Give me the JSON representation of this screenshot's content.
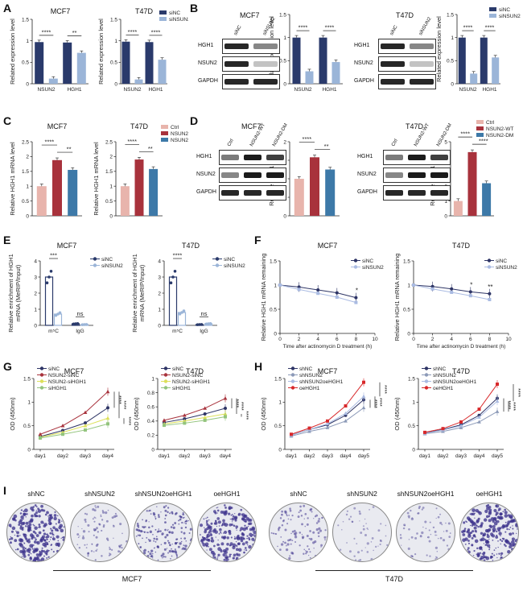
{
  "panel_letters": {
    "A": "A",
    "B": "B",
    "C": "C",
    "D": "D",
    "E": "E",
    "F": "F",
    "G": "G",
    "H": "H",
    "I": "I"
  },
  "colors": {
    "navy": "#2a3a6b",
    "lightblue": "#9bb5d8",
    "pink": "#e8b4ac",
    "crimson": "#a8323c",
    "steel": "#3d79a8",
    "darkblue": "#2e3566",
    "gray": "#8c9ab8",
    "yellow": "#dde05a",
    "green": "#93c47d",
    "red": "#d8282a",
    "lavender": "#aabbe2"
  },
  "blots": {
    "B_MCF7": {
      "title": "MCF7",
      "lanes": [
        "siNC",
        "siNSUN2"
      ],
      "rows": [
        "HGH1",
        "NSUN2",
        "GAPDH"
      ]
    },
    "B_T47D": {
      "title": "T47D",
      "lanes": [
        "siNC",
        "siNSUN2"
      ],
      "rows": [
        "HGH1",
        "NSUN2",
        "GAPDH"
      ]
    },
    "D_MCF7": {
      "title": "MCF7",
      "lanes": [
        "Ctrl",
        "NSUN2-WT",
        "NSUN2-DM"
      ],
      "rows": [
        "HGH1",
        "NSUN2",
        "GAPDH"
      ]
    },
    "D_T47D": {
      "title": "T47D",
      "lanes": [
        "Ctrl",
        "NSUN2-WT",
        "NSUN2-DM"
      ],
      "rows": [
        "HGH1",
        "NSUN2",
        "GAPDH"
      ]
    }
  },
  "colony": {
    "MCF7": {
      "labels": [
        "shNC",
        "shNSUN2",
        "shNSUN2oeHGH1",
        "oeHGH1"
      ],
      "group": "MCF7",
      "density": [
        0.85,
        0.25,
        0.6,
        0.8
      ]
    },
    "T47D": {
      "labels": [
        "shNC",
        "shNSUN2",
        "shNSUN2oeHGH1",
        "oeHGH1"
      ],
      "group": "T47D",
      "density": [
        0.35,
        0.12,
        0.18,
        0.85
      ]
    }
  },
  "chart_data": [
    {
      "id": "A1",
      "type": "bar",
      "title": "MCF7",
      "ylabel": "Related expression level",
      "categories": [
        "NSUN2",
        "HGH1"
      ],
      "ylim": [
        0,
        1.5
      ],
      "yticks": [
        0,
        0.5,
        1.0,
        1.5
      ],
      "legend": [],
      "series": [
        {
          "name": "siNC",
          "values": [
            0.97,
            0.96
          ]
        },
        {
          "name": "siNSUN2",
          "values": [
            0.12,
            0.72
          ]
        }
      ],
      "sig": [
        "****",
        "**"
      ]
    },
    {
      "id": "A2",
      "type": "bar",
      "title": "T47D",
      "ylabel": "Related expression level",
      "categories": [
        "NSUN2",
        "HGH1"
      ],
      "ylim": [
        0,
        1.5
      ],
      "yticks": [
        0,
        0.5,
        1.0,
        1.5
      ],
      "legend": [
        "siNC",
        "siNSUN2"
      ],
      "series": [
        {
          "name": "siNC",
          "values": [
            0.98,
            0.97
          ]
        },
        {
          "name": "siNSUN2",
          "values": [
            0.1,
            0.56
          ]
        }
      ],
      "sig": [
        "****",
        "****"
      ]
    },
    {
      "id": "B1",
      "type": "bar",
      "title": "",
      "ylabel": "Related expression level",
      "categories": [
        "NSUN2",
        "HGH1"
      ],
      "ylim": [
        0,
        1.5
      ],
      "yticks": [
        0,
        0.5,
        1.0,
        1.5
      ],
      "legend": [],
      "series": [
        {
          "name": "siNC",
          "values": [
            1.0,
            1.0
          ]
        },
        {
          "name": "siNSUN2",
          "values": [
            0.27,
            0.47
          ]
        }
      ],
      "sig": [
        "****",
        "****"
      ]
    },
    {
      "id": "B2",
      "type": "bar",
      "title": "",
      "ylabel": "Related expression level",
      "categories": [
        "NSUN2",
        "HGH1"
      ],
      "ylim": [
        0,
        1.5
      ],
      "yticks": [
        0,
        0.5,
        1.0,
        1.5
      ],
      "legend": [
        "siNC",
        "siNSUN2"
      ],
      "series": [
        {
          "name": "siNC",
          "values": [
            1.0,
            1.0
          ]
        },
        {
          "name": "siNSUN2",
          "values": [
            0.22,
            0.57
          ]
        }
      ],
      "sig": [
        "****",
        "****"
      ]
    },
    {
      "id": "C1",
      "type": "bar",
      "title": "MCF7",
      "ylabel": "Relative HGH1 mRNA level",
      "categories": [
        ""
      ],
      "ylim": [
        0,
        2.5
      ],
      "yticks": [
        0,
        0.5,
        1.0,
        1.5,
        2.0,
        2.5
      ],
      "legend": [],
      "series": [
        {
          "name": "Ctrl",
          "values": [
            1.0
          ]
        },
        {
          "name": "NSUN2-WT",
          "values": [
            1.88
          ]
        },
        {
          "name": "NSUN2-DM",
          "values": [
            1.55
          ]
        }
      ],
      "sig": [
        "****",
        "**"
      ]
    },
    {
      "id": "C2",
      "type": "bar",
      "title": "T47D",
      "ylabel": "Relative HGH1 mRNA level",
      "categories": [
        ""
      ],
      "ylim": [
        0,
        2.5
      ],
      "yticks": [
        0,
        0.5,
        1.0,
        1.5,
        2.0,
        2.5
      ],
      "legend": [
        "Ctrl",
        "NSUN2-WT",
        "NSUN2-DM"
      ],
      "series": [
        {
          "name": "Ctrl",
          "values": [
            1.0
          ]
        },
        {
          "name": "NSUN2-WT",
          "values": [
            1.9
          ]
        },
        {
          "name": "NSUN2-DM",
          "values": [
            1.58
          ]
        }
      ],
      "sig": [
        "****",
        "**"
      ]
    },
    {
      "id": "D1",
      "type": "bar",
      "title": "",
      "ylabel": "Relative HGH1 level",
      "categories": [
        ""
      ],
      "ylim": [
        0,
        2.0
      ],
      "yticks": [
        0,
        0.5,
        1.0,
        1.5,
        2.0
      ],
      "legend": [],
      "series": [
        {
          "name": "Ctrl",
          "values": [
            1.0
          ]
        },
        {
          "name": "NSUN2-WT",
          "values": [
            1.58
          ]
        },
        {
          "name": "NSUN2-DM",
          "values": [
            1.25
          ]
        }
      ],
      "sig": [
        "****",
        "**"
      ]
    },
    {
      "id": "D2",
      "type": "bar",
      "title": "",
      "ylabel": "Relative HGH1 level",
      "categories": [
        ""
      ],
      "ylim": [
        0,
        5
      ],
      "yticks": [
        0,
        1,
        2,
        3,
        4,
        5
      ],
      "legend": [
        "Ctrl",
        "NSUN2-WT",
        "NSUN2-DM"
      ],
      "series": [
        {
          "name": "Ctrl",
          "values": [
            1.0
          ]
        },
        {
          "name": "NSUN2-WT",
          "values": [
            4.3
          ]
        },
        {
          "name": "NSUN2-DM",
          "values": [
            2.2
          ]
        }
      ],
      "sig": [
        "****",
        "****"
      ]
    },
    {
      "id": "E1",
      "type": "bar",
      "title": "MCF7",
      "ylabel": "Relative enrichment of HGH1 mRNA (MeRIP/Input)",
      "categories": [
        "m⁵C",
        "IgG"
      ],
      "ylim": [
        0,
        4
      ],
      "yticks": [
        0,
        1,
        2,
        3,
        4
      ],
      "legend": [
        "siNC",
        "siNSUN2"
      ],
      "series": [
        {
          "name": "siNC",
          "values": [
            3.0,
            0.1
          ]
        },
        {
          "name": "siNSUN2",
          "values": [
            0.7,
            0.05
          ]
        }
      ],
      "sig": [
        "***",
        "ns"
      ]
    },
    {
      "id": "E2",
      "type": "bar",
      "title": "T47D",
      "ylabel": "Relative enrichment of HGH1 mRNA (MeRIP/Input)",
      "categories": [
        "m⁵C",
        "IgG"
      ],
      "ylim": [
        0,
        4
      ],
      "yticks": [
        0,
        1,
        2,
        3,
        4
      ],
      "legend": [
        "siNC",
        "siNSUN2"
      ],
      "series": [
        {
          "name": "siNC",
          "values": [
            3.0,
            0.05
          ]
        },
        {
          "name": "siNSUN2",
          "values": [
            0.8,
            0.1
          ]
        }
      ],
      "sig": [
        "****",
        "ns"
      ]
    },
    {
      "id": "F1",
      "type": "line",
      "title": "MCF7",
      "xlabel": "Time after actinomycin D treatment (h)",
      "ylabel": "Relative HGH1 mRNA remaining",
      "xlim": [
        0,
        10
      ],
      "ylim": [
        0,
        1.5
      ],
      "xticks": [
        0,
        2,
        4,
        6,
        8,
        10
      ],
      "yticks": [
        0,
        0.5,
        1.0,
        1.5
      ],
      "legend": [
        "siNC",
        "siNSUN2"
      ],
      "x": [
        0,
        2,
        4,
        6,
        8
      ],
      "series": [
        {
          "name": "siNC",
          "values": [
            1.0,
            0.96,
            0.9,
            0.84,
            0.74
          ]
        },
        {
          "name": "siNSUN2",
          "values": [
            1.0,
            0.91,
            0.83,
            0.75,
            0.64
          ]
        }
      ],
      "sig": [
        "*"
      ]
    },
    {
      "id": "F2",
      "type": "line",
      "title": "T47D",
      "xlabel": "Time after actinomycin D treatment (h)",
      "ylabel": "Relative HGH1 mRNA remaining",
      "xlim": [
        0,
        10
      ],
      "ylim": [
        0,
        1.5
      ],
      "xticks": [
        0,
        2,
        4,
        6,
        8,
        10
      ],
      "yticks": [
        0,
        0.5,
        1.0,
        1.5
      ],
      "legend": [
        "siNC",
        "siNSUN2"
      ],
      "x": [
        0,
        2,
        4,
        6,
        8
      ],
      "series": [
        {
          "name": "siNC",
          "values": [
            1.0,
            0.97,
            0.92,
            0.86,
            0.82
          ]
        },
        {
          "name": "siNSUN2",
          "values": [
            1.0,
            0.92,
            0.85,
            0.78,
            0.7
          ]
        }
      ],
      "sig": [
        "*",
        "**"
      ]
    },
    {
      "id": "G1",
      "type": "line",
      "title": "MCF7",
      "ylabel": "OD (450nm)",
      "categories": [
        "day1",
        "day2",
        "day3",
        "day4"
      ],
      "ylim": [
        0,
        1.5
      ],
      "yticks": [
        0,
        0.5,
        1.0,
        1.5
      ],
      "legend": [
        "siNC",
        "NSUN2-siNC",
        "NSUN2-siHGH1",
        "siHGH1"
      ],
      "series": [
        {
          "name": "siNC",
          "values": [
            0.27,
            0.4,
            0.56,
            0.88
          ]
        },
        {
          "name": "NSUN2-siNC",
          "values": [
            0.32,
            0.5,
            0.78,
            1.22
          ]
        },
        {
          "name": "NSUN2-siHGH1",
          "values": [
            0.26,
            0.36,
            0.5,
            0.66
          ]
        },
        {
          "name": "siHGH1",
          "values": [
            0.24,
            0.32,
            0.41,
            0.54
          ]
        }
      ],
      "sig": [
        "****",
        "****",
        "****"
      ]
    },
    {
      "id": "G2",
      "type": "line",
      "title": "T47D",
      "ylabel": "OD (450nm)",
      "categories": [
        "day1",
        "day2",
        "day3",
        "day4"
      ],
      "ylim": [
        0,
        1.0
      ],
      "yticks": [
        0,
        0.2,
        0.4,
        0.6,
        0.8,
        1.0
      ],
      "legend": [
        "siNC",
        "NSUN2-siNC",
        "NSUN2-siHGH1",
        "siHGH1"
      ],
      "series": [
        {
          "name": "siNC",
          "values": [
            0.38,
            0.43,
            0.5,
            0.58
          ]
        },
        {
          "name": "NSUN2-siNC",
          "values": [
            0.41,
            0.48,
            0.58,
            0.72
          ]
        },
        {
          "name": "NSUN2-siHGH1",
          "values": [
            0.36,
            0.4,
            0.45,
            0.5
          ]
        },
        {
          "name": "siHGH1",
          "values": [
            0.34,
            0.37,
            0.41,
            0.46
          ]
        }
      ],
      "sig": [
        "****",
        "****",
        "****"
      ]
    },
    {
      "id": "H1",
      "type": "line",
      "title": "MCF7",
      "ylabel": "OD (450nm)",
      "categories": [
        "day1",
        "day2",
        "day3",
        "day4",
        "day5"
      ],
      "ylim": [
        0,
        1.5
      ],
      "yticks": [
        0,
        0.5,
        1.0,
        1.5
      ],
      "legend": [
        "shNC",
        "shNSUN2",
        "shNSUN2oeHGH1",
        "oeHGH1"
      ],
      "series": [
        {
          "name": "shNC",
          "values": [
            0.3,
            0.42,
            0.52,
            0.72,
            1.05
          ]
        },
        {
          "name": "shNSUN2",
          "values": [
            0.28,
            0.38,
            0.46,
            0.6,
            0.88
          ]
        },
        {
          "name": "shNSUN2oeHGH1",
          "values": [
            0.3,
            0.42,
            0.54,
            0.76,
            1.12
          ]
        },
        {
          "name": "oeHGH1",
          "values": [
            0.32,
            0.45,
            0.6,
            0.92,
            1.42
          ]
        }
      ],
      "sig": [
        "****",
        "****",
        "****"
      ]
    },
    {
      "id": "H2",
      "type": "line",
      "title": "T47D",
      "ylabel": "OD (450nm)",
      "categories": [
        "day1",
        "day2",
        "day3",
        "day4",
        "day5"
      ],
      "ylim": [
        0,
        1.5
      ],
      "yticks": [
        0,
        0.5,
        1.0,
        1.5
      ],
      "legend": [
        "shNC",
        "shNSUN2",
        "shNSUN2oeHGH1",
        "oeHGH1"
      ],
      "series": [
        {
          "name": "shNC",
          "values": [
            0.35,
            0.42,
            0.52,
            0.72,
            1.08
          ]
        },
        {
          "name": "shNSUN2",
          "values": [
            0.33,
            0.38,
            0.46,
            0.58,
            0.8
          ]
        },
        {
          "name": "shNSUN2oeHGH1",
          "values": [
            0.34,
            0.41,
            0.5,
            0.68,
            1.02
          ]
        },
        {
          "name": "oeHGH1",
          "values": [
            0.36,
            0.44,
            0.58,
            0.85,
            1.38
          ]
        }
      ],
      "sig": [
        "****",
        "****",
        "****"
      ]
    }
  ]
}
